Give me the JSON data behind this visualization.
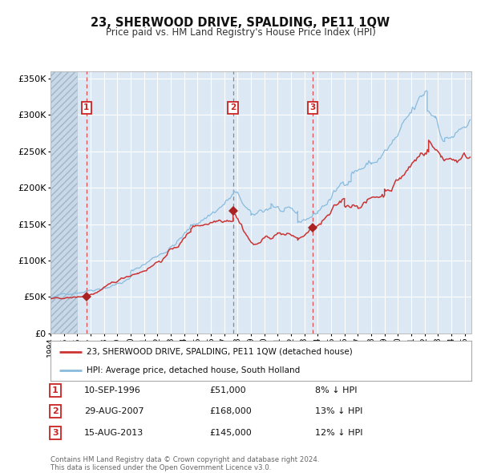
{
  "title": "23, SHERWOOD DRIVE, SPALDING, PE11 1QW",
  "subtitle": "Price paid vs. HM Land Registry's House Price Index (HPI)",
  "background_color": "#dce9f5",
  "grid_color": "#ffffff",
  "ylim": [
    0,
    360000
  ],
  "yticks": [
    0,
    50000,
    100000,
    150000,
    200000,
    250000,
    300000,
    350000
  ],
  "sale_dates_num": [
    1996.69,
    2007.66,
    2013.62
  ],
  "sale_prices": [
    51000,
    168000,
    145000
  ],
  "sale_labels": [
    "1",
    "2",
    "3"
  ],
  "marker_color": "#aa2222",
  "line_color_red": "#cc3333",
  "line_color_blue": "#88bbdd",
  "legend_label_red": "23, SHERWOOD DRIVE, SPALDING, PE11 1QW (detached house)",
  "legend_label_blue": "HPI: Average price, detached house, South Holland",
  "table_rows": [
    {
      "num": "1",
      "date": "10-SEP-1996",
      "price": "£51,000",
      "change": "8% ↓ HPI"
    },
    {
      "num": "2",
      "date": "29-AUG-2007",
      "price": "£168,000",
      "change": "13% ↓ HPI"
    },
    {
      "num": "3",
      "date": "15-AUG-2013",
      "price": "£145,000",
      "change": "12% ↓ HPI"
    }
  ],
  "footer": "Contains HM Land Registry data © Crown copyright and database right 2024.\nThis data is licensed under the Open Government Licence v3.0.",
  "xmin": 1994.0,
  "xmax": 2025.5,
  "hatch_xmax": 1996.0
}
